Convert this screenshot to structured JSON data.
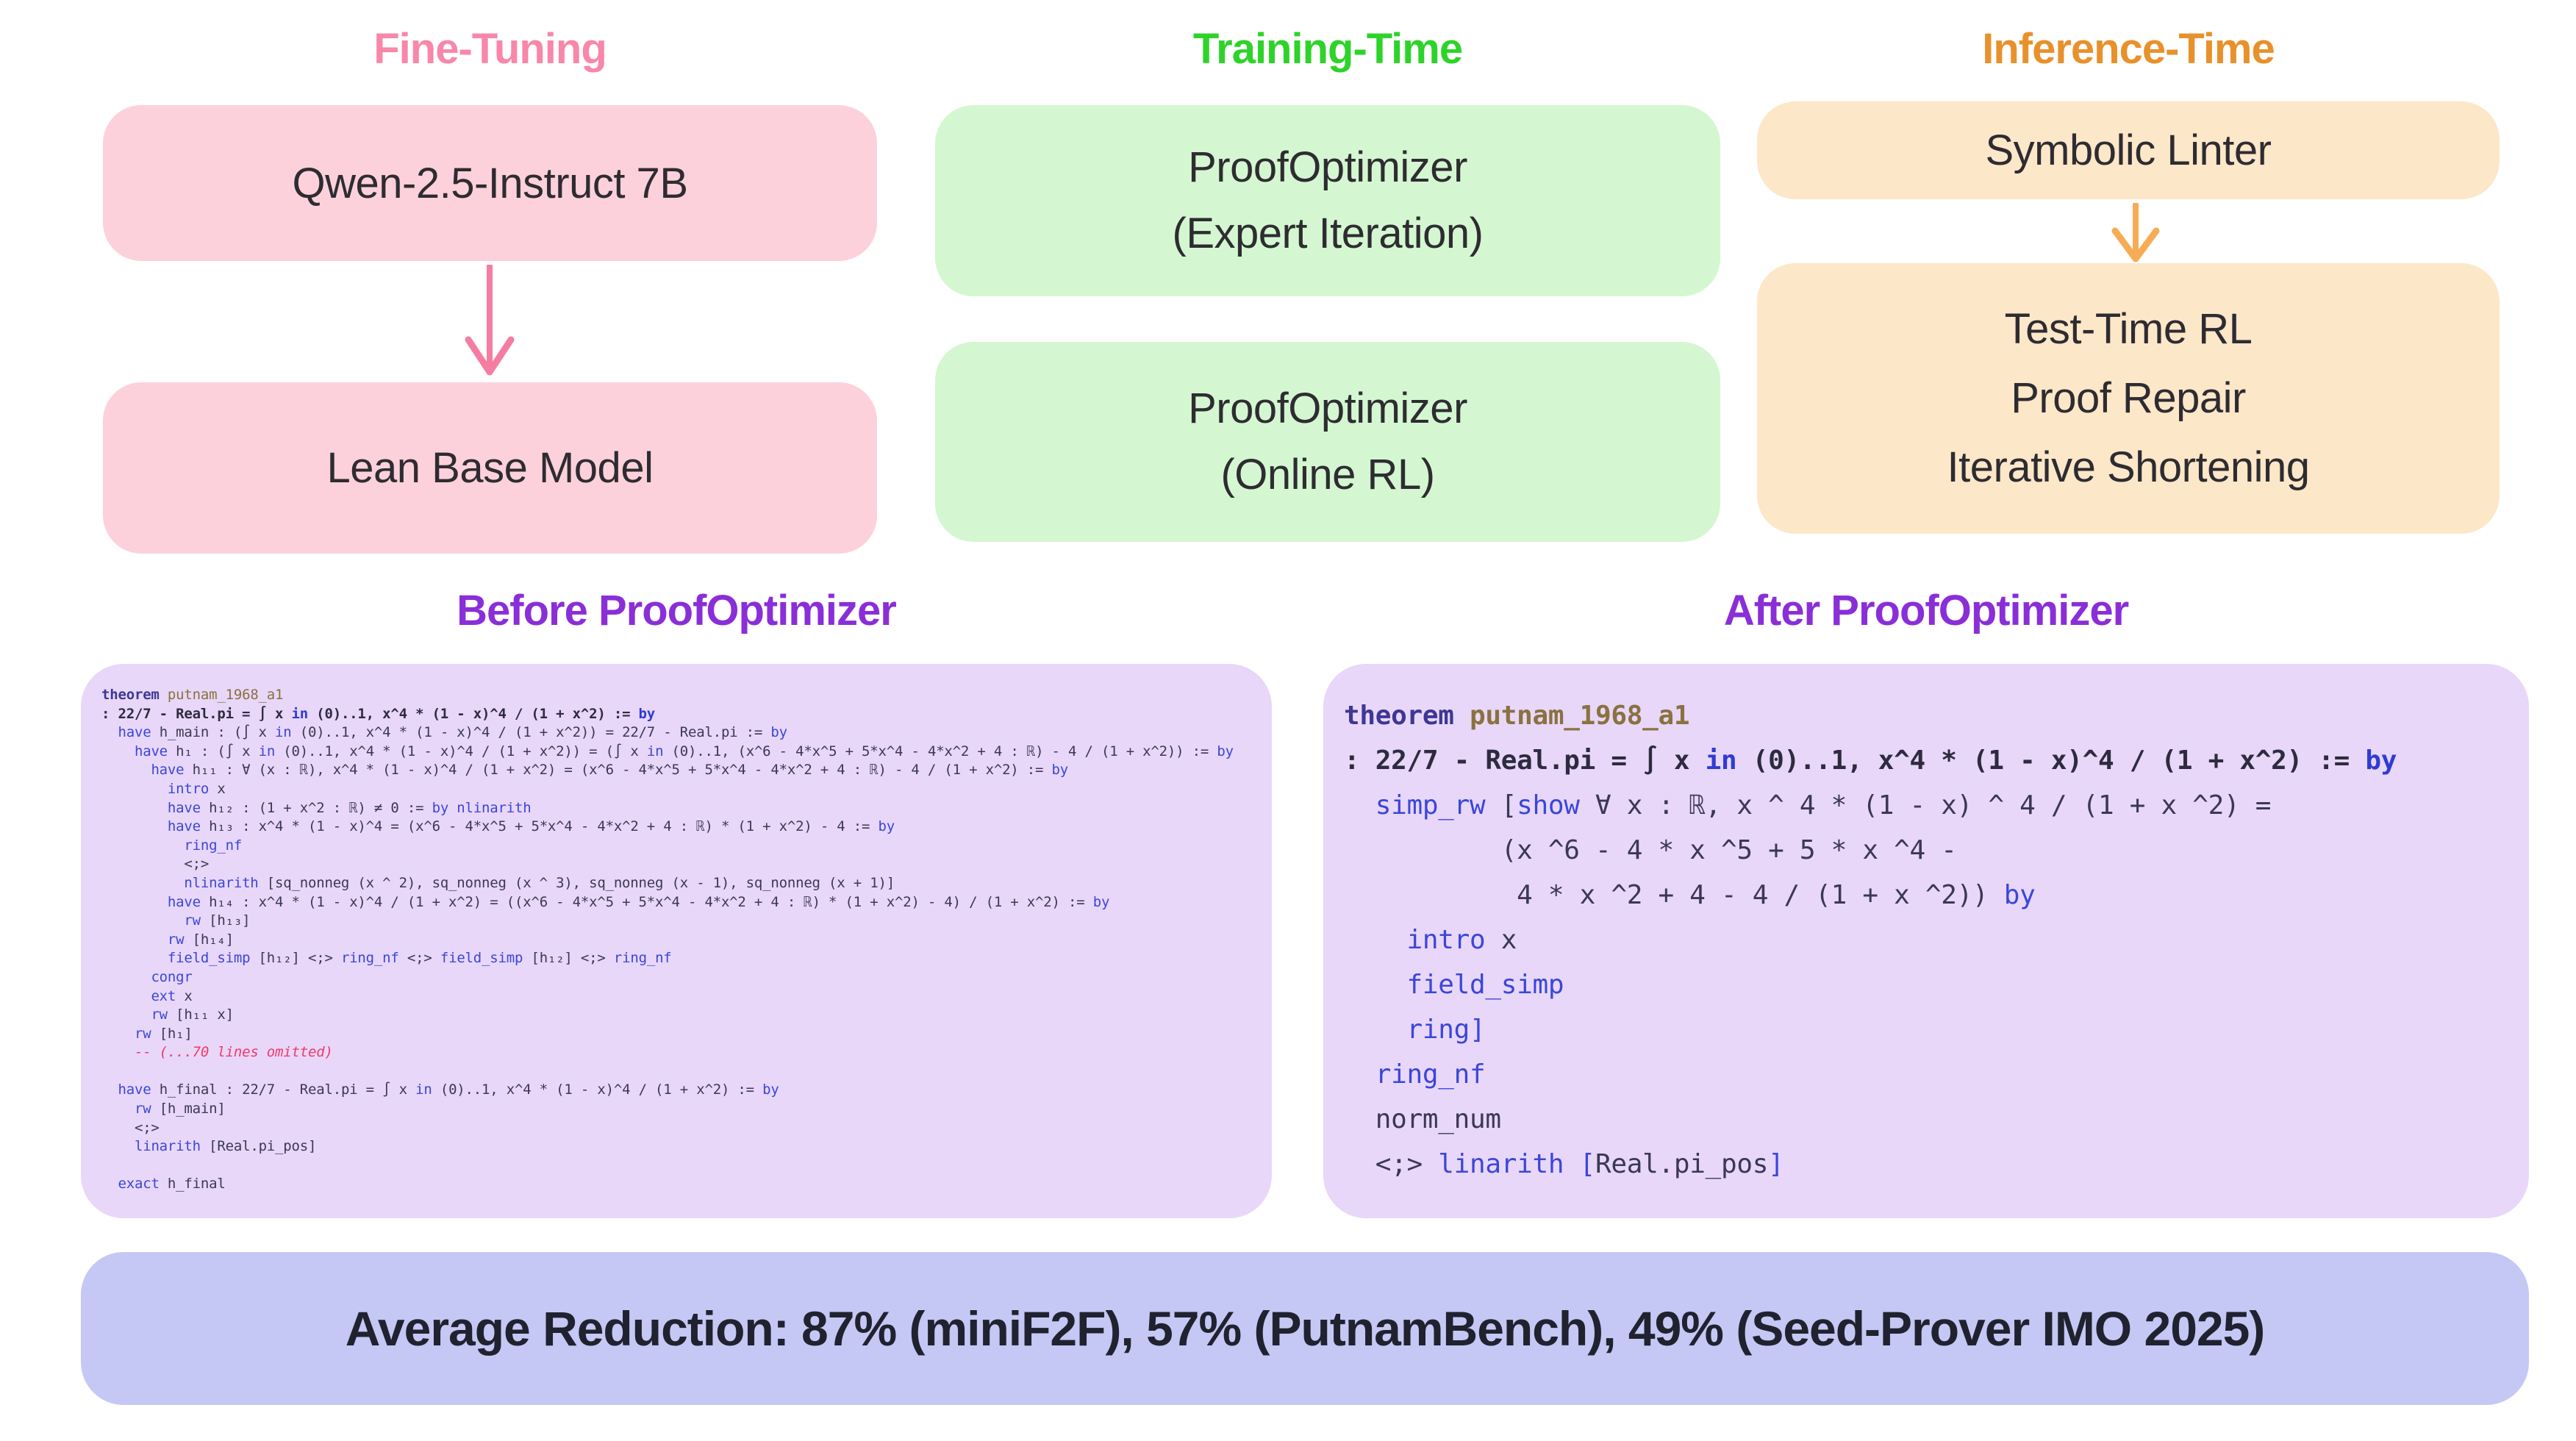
{
  "columns": {
    "fine_tuning": {
      "title": "Fine-Tuning",
      "box1": "Qwen-2.5-Instruct 7B",
      "box2": "Lean Base Model"
    },
    "training_time": {
      "title": "Training-Time",
      "box1_lines": [
        "ProofOptimizer",
        "(Expert Iteration)"
      ],
      "box2_lines": [
        "ProofOptimizer",
        "(Online RL)"
      ]
    },
    "inference_time": {
      "title": "Inference-Time",
      "box1": "Symbolic Linter",
      "box2_lines": [
        "Test-Time RL",
        "Proof Repair",
        "Iterative Shortening"
      ]
    }
  },
  "comparison": {
    "before": {
      "title": "Before ProofOptimizer",
      "code_lines": [
        [
          [
            "thm",
            "theorem"
          ],
          [
            "name",
            " putnam_1968_a1"
          ]
        ],
        [
          [
            "defb",
            ": 22/7 - Real.pi = ∫ x "
          ],
          [
            "kwb",
            "in"
          ],
          [
            "defb",
            " (0)..1, x^4 * (1 - x)^4 / (1 + x^2) := "
          ],
          [
            "kwb",
            "by"
          ]
        ],
        [
          [
            "def",
            "  "
          ],
          [
            "kw",
            "have"
          ],
          [
            "def",
            " h_main : (∫ x "
          ],
          [
            "kw",
            "in"
          ],
          [
            "def",
            " (0)..1, x^4 * (1 - x)^4 / (1 + x^2)) = 22/7 - Real.pi := "
          ],
          [
            "kw",
            "by"
          ]
        ],
        [
          [
            "def",
            "    "
          ],
          [
            "kw",
            "have"
          ],
          [
            "def",
            " h₁ : (∫ x "
          ],
          [
            "kw",
            "in"
          ],
          [
            "def",
            " (0)..1, x^4 * (1 - x)^4 / (1 + x^2)) = (∫ x "
          ],
          [
            "kw",
            "in"
          ],
          [
            "def",
            " (0)..1, (x^6 - 4*x^5 + 5*x^4 - 4*x^2 + 4 : ℝ) - 4 / (1 + x^2)) := "
          ],
          [
            "kw",
            "by"
          ]
        ],
        [
          [
            "def",
            "      "
          ],
          [
            "kw",
            "have"
          ],
          [
            "def",
            " h₁₁ : ∀ (x : ℝ), x^4 * (1 - x)^4 / (1 + x^2) = (x^6 - 4*x^5 + 5*x^4 - 4*x^2 + 4 : ℝ) - 4 / (1 + x^2) := "
          ],
          [
            "kw",
            "by"
          ]
        ],
        [
          [
            "def",
            "        "
          ],
          [
            "kw",
            "intro"
          ],
          [
            "def",
            " x"
          ]
        ],
        [
          [
            "def",
            "        "
          ],
          [
            "kw",
            "have"
          ],
          [
            "def",
            " h₁₂ : (1 + x^2 : ℝ) ≠ 0 := "
          ],
          [
            "kw",
            "by nlinarith"
          ]
        ],
        [
          [
            "def",
            "        "
          ],
          [
            "kw",
            "have"
          ],
          [
            "def",
            " h₁₃ : x^4 * (1 - x)^4 = (x^6 - 4*x^5 + 5*x^4 - 4*x^2 + 4 : ℝ) * (1 + x^2) - 4 := "
          ],
          [
            "kw",
            "by"
          ]
        ],
        [
          [
            "def",
            "          "
          ],
          [
            "kw",
            "ring_nf"
          ]
        ],
        [
          [
            "def",
            "          <;>"
          ]
        ],
        [
          [
            "def",
            "          "
          ],
          [
            "kw",
            "nlinarith"
          ],
          [
            "def",
            " [sq_nonneg (x ^ 2), sq_nonneg (x ^ 3), sq_nonneg (x - 1), sq_nonneg (x + 1)]"
          ]
        ],
        [
          [
            "def",
            "        "
          ],
          [
            "kw",
            "have"
          ],
          [
            "def",
            " h₁₄ : x^4 * (1 - x)^4 / (1 + x^2) = ((x^6 - 4*x^5 + 5*x^4 - 4*x^2 + 4 : ℝ) * (1 + x^2) - 4) / (1 + x^2) := "
          ],
          [
            "kw",
            "by"
          ]
        ],
        [
          [
            "def",
            "          "
          ],
          [
            "kw",
            "rw"
          ],
          [
            "def",
            " [h₁₃]"
          ]
        ],
        [
          [
            "def",
            "        "
          ],
          [
            "kw",
            "rw"
          ],
          [
            "def",
            " [h₁₄]"
          ]
        ],
        [
          [
            "def",
            "        "
          ],
          [
            "kw",
            "field_simp"
          ],
          [
            "def",
            " [h₁₂] <;> "
          ],
          [
            "kw",
            "ring_nf"
          ],
          [
            "def",
            " <;> "
          ],
          [
            "kw",
            "field_simp"
          ],
          [
            "def",
            " [h₁₂] <;> "
          ],
          [
            "kw",
            "ring_nf"
          ]
        ],
        [
          [
            "def",
            "      "
          ],
          [
            "kw",
            "congr"
          ]
        ],
        [
          [
            "def",
            "      "
          ],
          [
            "kw",
            "ext"
          ],
          [
            "def",
            " x"
          ]
        ],
        [
          [
            "def",
            "      "
          ],
          [
            "kw",
            "rw"
          ],
          [
            "def",
            " [h₁₁ x]"
          ]
        ],
        [
          [
            "def",
            "    "
          ],
          [
            "kw",
            "rw"
          ],
          [
            "def",
            " [h₁]"
          ]
        ],
        [
          [
            "def",
            "    "
          ],
          [
            "com",
            "-- (...70 lines omitted)"
          ]
        ],
        [],
        [
          [
            "def",
            "  "
          ],
          [
            "kw",
            "have"
          ],
          [
            "def",
            " h_final : 22/7 - Real.pi = ∫ x "
          ],
          [
            "kw",
            "in"
          ],
          [
            "def",
            " (0)..1, x^4 * (1 - x)^4 / (1 + x^2) := "
          ],
          [
            "kw",
            "by"
          ]
        ],
        [
          [
            "def",
            "    "
          ],
          [
            "kw",
            "rw"
          ],
          [
            "def",
            " [h_main]"
          ]
        ],
        [
          [
            "def",
            "    <;>"
          ]
        ],
        [
          [
            "def",
            "    "
          ],
          [
            "kw",
            "linarith"
          ],
          [
            "def",
            " [Real.pi_pos]"
          ]
        ],
        [],
        [
          [
            "def",
            "  "
          ],
          [
            "kw",
            "exact"
          ],
          [
            "def",
            " h_final"
          ]
        ]
      ]
    },
    "after": {
      "title": "After ProofOptimizer",
      "code_lines": [
        [
          [
            "thm",
            "theorem"
          ],
          [
            "nameb",
            " putnam_1968_a1"
          ]
        ],
        [
          [
            "defb",
            ": 22/7 - Real.pi = ∫ x "
          ],
          [
            "kwb",
            "in"
          ],
          [
            "defb",
            " (0)..1, x^4 * (1 - x)^4 / (1 + x^2) := "
          ],
          [
            "kwb",
            "by"
          ]
        ],
        [
          [
            "def",
            "  "
          ],
          [
            "kw",
            "simp_rw"
          ],
          [
            "def",
            " ["
          ],
          [
            "kw",
            "show"
          ],
          [
            "def",
            " ∀ x : ℝ, x ^ 4 * (1 - x) ^ 4 / (1 + x ^2) ="
          ]
        ],
        [
          [
            "def",
            "          (x ^6 - 4 * x ^5 + 5 * x ^4 -"
          ]
        ],
        [
          [
            "def",
            "           4 * x ^2 + 4 - 4 / (1 + x ^2)) "
          ],
          [
            "kw",
            "by"
          ]
        ],
        [
          [
            "def",
            "    "
          ],
          [
            "kw",
            "intro"
          ],
          [
            "def",
            " x"
          ]
        ],
        [
          [
            "def",
            "    "
          ],
          [
            "kw",
            "field_simp"
          ]
        ],
        [
          [
            "def",
            "    "
          ],
          [
            "kw",
            "ring]"
          ]
        ],
        [
          [
            "def",
            "  "
          ],
          [
            "kw",
            "ring_nf"
          ]
        ],
        [
          [
            "def",
            "  norm_num"
          ]
        ],
        [
          [
            "def",
            "  <;> "
          ],
          [
            "kw",
            "linarith"
          ],
          [
            "def",
            " "
          ],
          [
            "kw",
            "["
          ],
          [
            "def",
            "Real.pi_pos"
          ],
          [
            "kw",
            "]"
          ]
        ]
      ]
    }
  },
  "footer": {
    "text": "Average Reduction: 87% (miniF2F), 57% (PutnamBench), 49% (Seed-Prover IMO 2025)"
  },
  "colors": {
    "fine_tuning_accent": "#F887A9",
    "fine_tuning_box": "#FCD1DC",
    "fine_tuning_arrow": "#F57DA2",
    "training_accent": "#2ED32A",
    "training_box": "#D4F7D1",
    "inference_accent": "#E8912C",
    "inference_box": "#FCE7C9",
    "inference_arrow": "#F6AC55",
    "section_title": "#8A2ED8",
    "code_panel_bg": "#E8D7F8",
    "keyword_blue": "#3B46DB",
    "theorem_keyword": "#3E3794",
    "theorem_name": "#8A7140",
    "code_text": "#3B3854",
    "comment_red": "#EF3A6B",
    "footer_bg": "#C5C8F4",
    "footer_text": "#20222F"
  }
}
